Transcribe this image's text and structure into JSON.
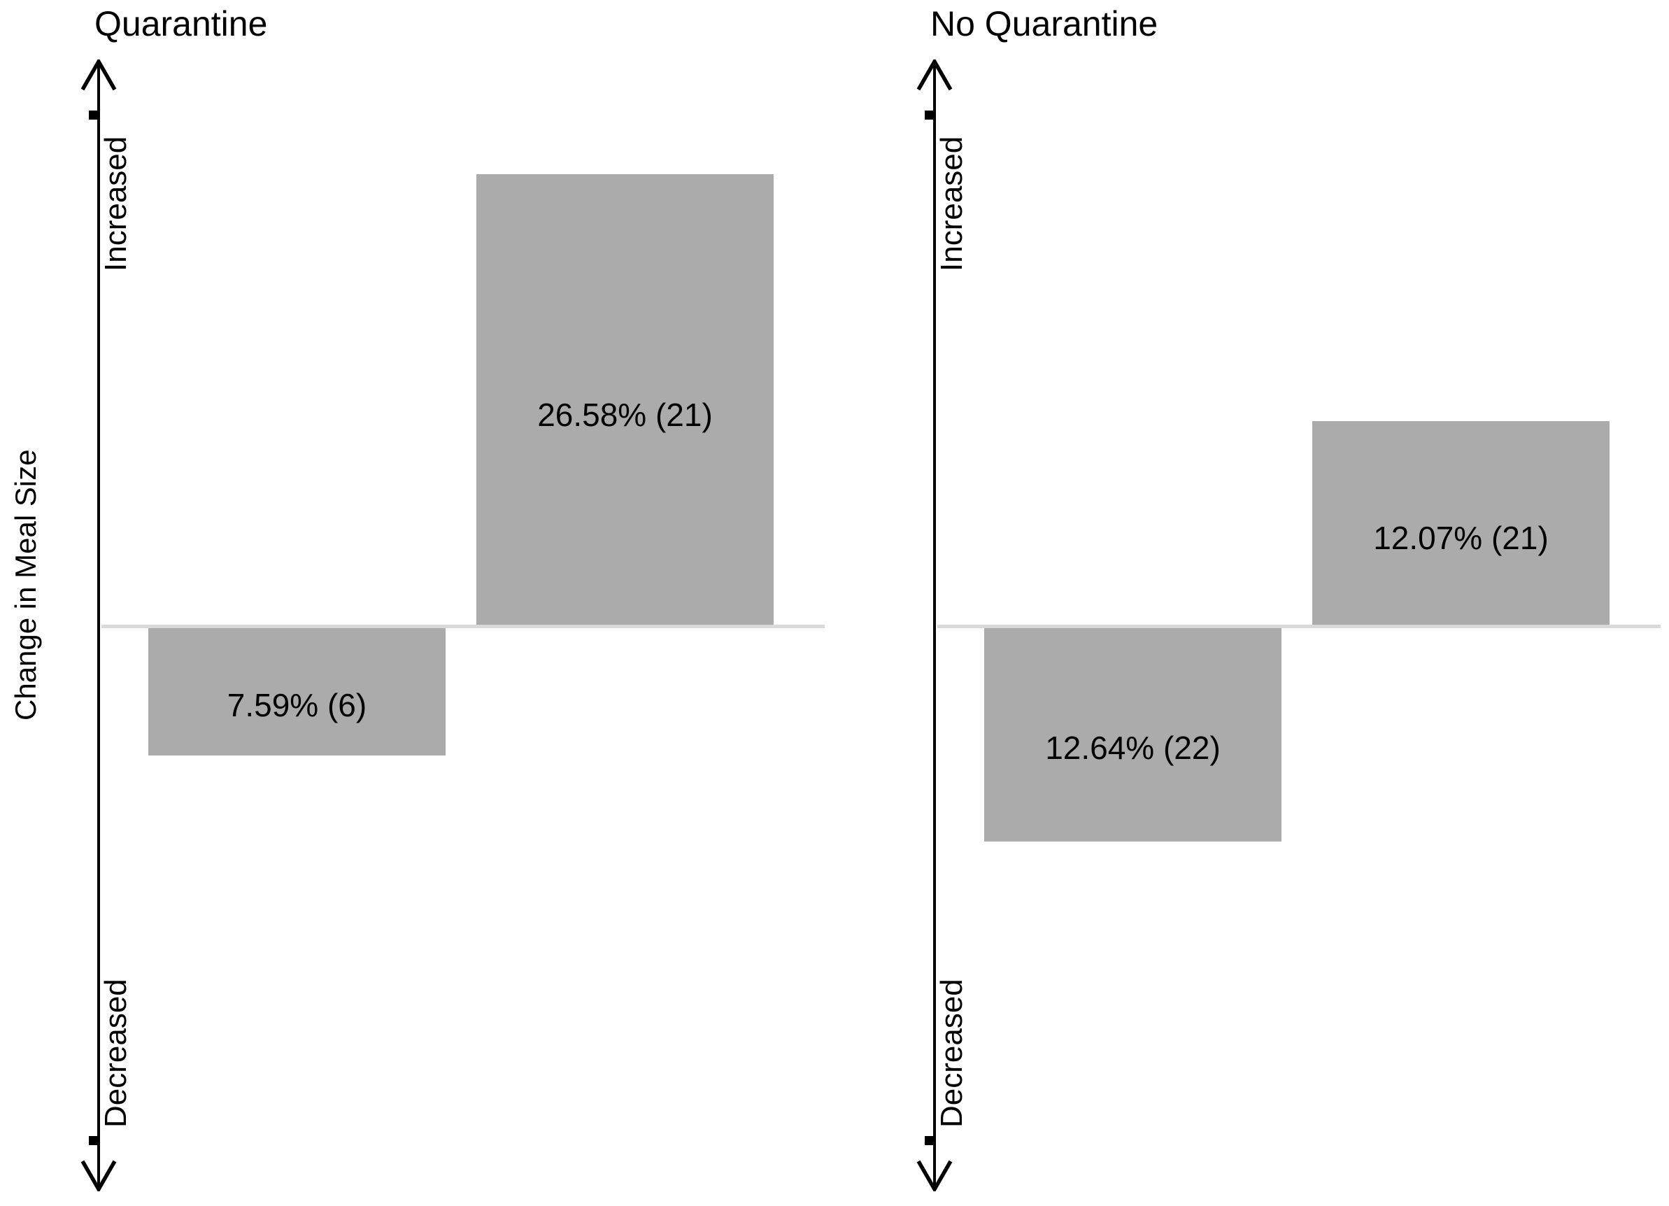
{
  "figure": {
    "y_axis_title": "Change in Meal Size"
  },
  "chart_data": [
    {
      "type": "bar",
      "title": "Quarantine",
      "categories": [
        "Decreased",
        "Increased"
      ],
      "values": [
        -7.59,
        26.58
      ],
      "counts": [
        6,
        21
      ],
      "bar_labels": [
        "7.59% (6)",
        "26.58% (21)"
      ],
      "ylabel": "Change in Meal Size",
      "yaxis": {
        "top_annotation": "Increased",
        "bottom_annotation": "Decreased",
        "zero_baseline": true,
        "numeric_ticks_labeled": false
      },
      "grid": false,
      "legend": false,
      "bar_color": "#ababab",
      "baseline_color": "#d9d9d9"
    },
    {
      "type": "bar",
      "title": "No Quarantine",
      "categories": [
        "Decreased",
        "Increased"
      ],
      "values": [
        -12.64,
        12.07
      ],
      "counts": [
        22,
        21
      ],
      "bar_labels": [
        "12.64% (22)",
        "12.07% (21)"
      ],
      "ylabel": "Change in Meal Size",
      "yaxis": {
        "top_annotation": "Increased",
        "bottom_annotation": "Decreased",
        "zero_baseline": true,
        "numeric_ticks_labeled": false
      },
      "grid": false,
      "legend": false,
      "bar_color": "#ababab",
      "baseline_color": "#d9d9d9"
    }
  ]
}
